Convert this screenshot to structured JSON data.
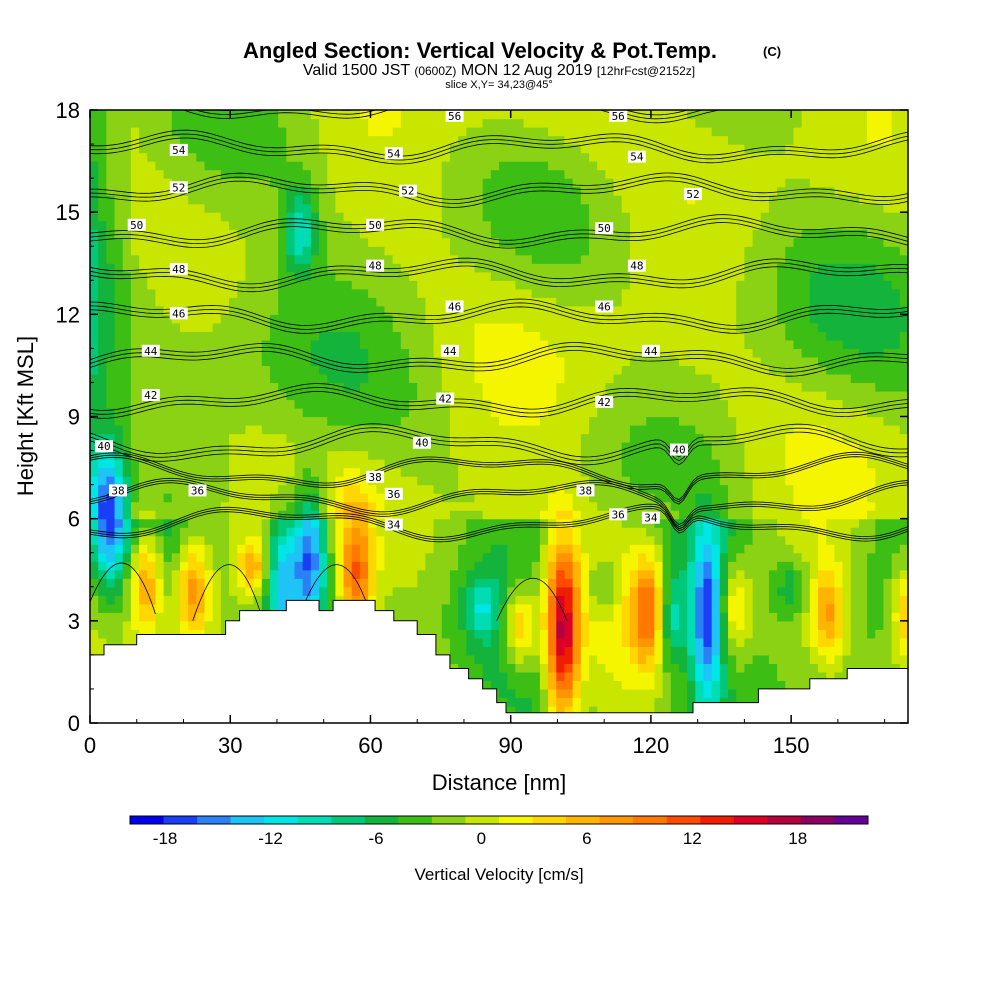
{
  "title": "Angled Section: Vertical Velocity & Pot.Temp.",
  "title_suffix": "(C)",
  "valid_prefix": "Valid 1500 JST",
  "valid_zulu": "(0600Z)",
  "valid_date": "MON 12 Aug 2019",
  "forecast_note": "[12hrFcst@2152z]",
  "slice_label": "slice X,Y= 34,23@45°",
  "chart_data": {
    "type": "heatmap",
    "xlabel": "Distance [nm]",
    "ylabel": "Height [Kft MSL]",
    "xlim": [
      0,
      175
    ],
    "ylim": [
      0,
      18
    ],
    "xticks": [
      0,
      30,
      60,
      90,
      120,
      150
    ],
    "yticks": [
      0,
      3,
      6,
      9,
      12,
      15,
      18
    ],
    "terrain": [
      [
        0,
        2.0
      ],
      [
        3,
        2.0
      ],
      [
        3,
        2.3
      ],
      [
        10,
        2.3
      ],
      [
        10,
        2.6
      ],
      [
        29,
        2.6
      ],
      [
        29,
        3.0
      ],
      [
        32,
        3.0
      ],
      [
        32,
        3.3
      ],
      [
        42,
        3.3
      ],
      [
        42,
        3.6
      ],
      [
        49,
        3.6
      ],
      [
        49,
        3.3
      ],
      [
        52,
        3.3
      ],
      [
        52,
        3.6
      ],
      [
        61,
        3.6
      ],
      [
        61,
        3.3
      ],
      [
        65,
        3.3
      ],
      [
        65,
        3.0
      ],
      [
        70,
        3.0
      ],
      [
        70,
        2.6
      ],
      [
        74,
        2.6
      ],
      [
        74,
        2.0
      ],
      [
        77,
        2.0
      ],
      [
        77,
        1.6
      ],
      [
        81,
        1.6
      ],
      [
        81,
        1.3
      ],
      [
        84,
        1.3
      ],
      [
        84,
        1.0
      ],
      [
        87,
        1.0
      ],
      [
        87,
        0.6
      ],
      [
        89,
        0.6
      ],
      [
        89,
        0.3
      ],
      [
        129,
        0.3
      ],
      [
        129,
        0.6
      ],
      [
        143,
        0.6
      ],
      [
        143,
        1.0
      ],
      [
        154,
        1.0
      ],
      [
        154,
        1.3
      ],
      [
        162,
        1.3
      ],
      [
        162,
        1.6
      ],
      [
        175,
        1.6
      ]
    ],
    "w_cells": [
      {
        "x": 12,
        "y": 4.2,
        "w": 14,
        "z": 12
      },
      {
        "x": 22,
        "y": 4.0,
        "w": 13,
        "z": 11
      },
      {
        "x": 35,
        "y": 4.6,
        "w": 7,
        "z": 8
      },
      {
        "x": 47,
        "y": 5.0,
        "w": 19,
        "z": -15
      },
      {
        "x": 41,
        "y": 4.3,
        "w": 18,
        "z": -12
      },
      {
        "x": 57,
        "y": 4.3,
        "w": 18,
        "z": 13
      },
      {
        "x": 92,
        "y": 2.8,
        "w": 11,
        "z": 10
      },
      {
        "x": 101,
        "y": 2.7,
        "w": 24,
        "z": 20
      },
      {
        "x": 120,
        "y": 3.3,
        "w": 14,
        "z": 12
      },
      {
        "x": 124,
        "y": 3.1,
        "w": 14,
        "z": -11
      },
      {
        "x": 132,
        "y": 3.1,
        "w": 23,
        "z": -16
      },
      {
        "x": 138,
        "y": 3.4,
        "w": 13,
        "z": 7
      },
      {
        "x": 158,
        "y": 3.2,
        "w": 12,
        "z": 9
      },
      {
        "x": 175,
        "y": 3.3,
        "w": 14,
        "z": 9
      },
      {
        "x": 4,
        "y": 6.2,
        "w": 17,
        "z": -14
      },
      {
        "x": 45,
        "y": 14.5,
        "w": 11,
        "z": -9
      },
      {
        "x": 150,
        "y": 4.0,
        "w": 8,
        "z": -5
      },
      {
        "x": 110,
        "y": 4.0,
        "w": 8,
        "z": -5
      },
      {
        "x": 84,
        "y": 3.4,
        "w": 8,
        "z": -6
      }
    ],
    "theta_levels": [
      34,
      36,
      38,
      40,
      42,
      44,
      46,
      48,
      50,
      52,
      54,
      56
    ],
    "theta_labels": [
      {
        "v": 34,
        "x": 65,
        "y": 5.8
      },
      {
        "v": 34,
        "x": 120,
        "y": 6.0
      },
      {
        "v": 36,
        "x": 23,
        "y": 6.8
      },
      {
        "v": 36,
        "x": 65,
        "y": 6.7
      },
      {
        "v": 36,
        "x": 113,
        "y": 6.1
      },
      {
        "v": 38,
        "x": 6,
        "y": 6.8
      },
      {
        "v": 38,
        "x": 61,
        "y": 7.2
      },
      {
        "v": 38,
        "x": 106,
        "y": 6.8
      },
      {
        "v": 40,
        "x": 3,
        "y": 8.1
      },
      {
        "v": 40,
        "x": 71,
        "y": 8.2
      },
      {
        "v": 40,
        "x": 126,
        "y": 8.0
      },
      {
        "v": 42,
        "x": 13,
        "y": 9.6
      },
      {
        "v": 42,
        "x": 76,
        "y": 9.5
      },
      {
        "v": 42,
        "x": 110,
        "y": 9.4
      },
      {
        "v": 44,
        "x": 13,
        "y": 10.9
      },
      {
        "v": 44,
        "x": 77,
        "y": 10.9
      },
      {
        "v": 44,
        "x": 120,
        "y": 10.9
      },
      {
        "v": 46,
        "x": 19,
        "y": 12.0
      },
      {
        "v": 46,
        "x": 78,
        "y": 12.2
      },
      {
        "v": 46,
        "x": 110,
        "y": 12.2
      },
      {
        "v": 48,
        "x": 19,
        "y": 13.3
      },
      {
        "v": 48,
        "x": 61,
        "y": 13.4
      },
      {
        "v": 48,
        "x": 117,
        "y": 13.4
      },
      {
        "v": 50,
        "x": 10,
        "y": 14.6
      },
      {
        "v": 50,
        "x": 61,
        "y": 14.6
      },
      {
        "v": 50,
        "x": 110,
        "y": 14.5
      },
      {
        "v": 52,
        "x": 19,
        "y": 15.7
      },
      {
        "v": 52,
        "x": 68,
        "y": 15.6
      },
      {
        "v": 52,
        "x": 129,
        "y": 15.5
      },
      {
        "v": 54,
        "x": 19,
        "y": 16.8
      },
      {
        "v": 54,
        "x": 65,
        "y": 16.7
      },
      {
        "v": 54,
        "x": 117,
        "y": 16.6
      },
      {
        "v": 56,
        "x": 78,
        "y": 17.8
      },
      {
        "v": 56,
        "x": 113,
        "y": 17.8
      }
    ],
    "colorbar": {
      "label": "Vertical Velocity [cm/s]",
      "ticks": [
        "-18",
        "-12",
        "-6",
        "0",
        "6",
        "12",
        "18"
      ],
      "min": -20,
      "max": 22,
      "step": 2,
      "colors": [
        "#0000ee",
        "#1a3ef5",
        "#2a80f5",
        "#1ec4f5",
        "#00e6e6",
        "#00dcb4",
        "#00c878",
        "#14b43c",
        "#3cbe14",
        "#8cd214",
        "#c8e600",
        "#f5f500",
        "#ffd700",
        "#ffb400",
        "#ff9600",
        "#ff7800",
        "#ff4b00",
        "#f01e00",
        "#dc0028",
        "#b4003c",
        "#8c0064",
        "#640096"
      ]
    }
  }
}
